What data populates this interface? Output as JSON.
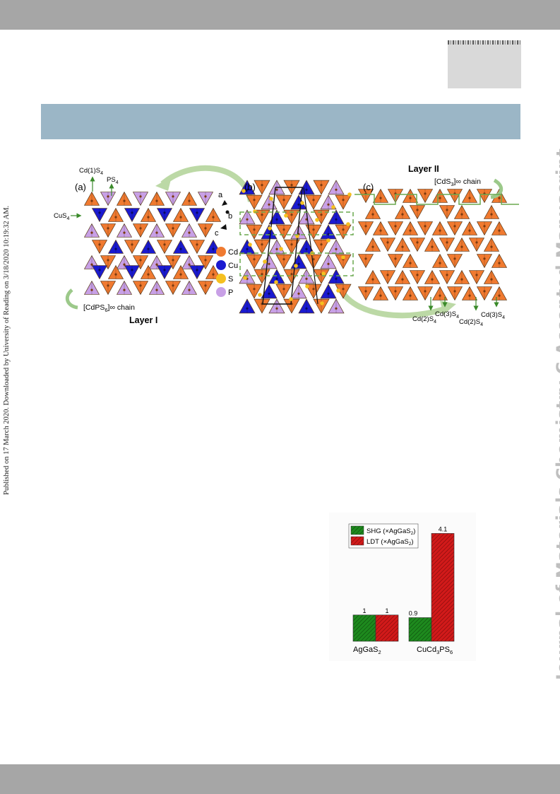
{
  "sidebar_left": "Published on 17 March 2020. Downloaded by University of Reading on 3/18/2020 10:19:32 AM.",
  "sidebar_right": "Journal of Materials Chemistry C Accepted Manuscript",
  "figure1": {
    "panel_a": "(a)",
    "panel_b": "(b)",
    "panel_c": "(c)",
    "cd1s4": "Cd(1)S",
    "ps4": "PS",
    "cus4": "CuS",
    "cdps6_chain": "[CdPS",
    "cdps6_chain_tail": "]∞ chain",
    "layer1": "Layer I",
    "layer2": "Layer II",
    "cds3_chain": "[CdS",
    "cds3_chain_tail": "]∞ chain",
    "axis_a": "a",
    "axis_b": "b",
    "axis_c": "c",
    "legend": [
      {
        "label": "Cd",
        "color": "#f07a30"
      },
      {
        "label": "Cu",
        "color": "#1a1ad0"
      },
      {
        "label": "S",
        "color": "#f5c020"
      },
      {
        "label": "P",
        "color": "#c8a0e6"
      }
    ],
    "cd2s4": "Cd(2)S",
    "cd3s4": "Cd(3)S",
    "sub4": "4",
    "sub3": "3",
    "sub6": "6"
  },
  "chart_data": {
    "type": "bar",
    "categories": [
      "AgGaS2",
      "CuCd3PS6"
    ],
    "category_labels": [
      {
        "base": "AgGaS",
        "sub": "2"
      },
      {
        "base": "CuCd",
        "sub": "3",
        "mid": "PS",
        "sub2": "6"
      }
    ],
    "series": [
      {
        "name": "SHG (×AgGaS2)",
        "legend_base": "SHG (×AgGaS",
        "legend_sub": "2",
        "legend_tail": ")",
        "values": [
          1,
          0.9
        ],
        "color": "#1e8a1e"
      },
      {
        "name": "LDT (×AgGaS2)",
        "legend_base": "LDT (×AgGaS",
        "legend_sub": "2",
        "legend_tail": ")",
        "values": [
          1,
          4.1
        ],
        "color": "#d21a1a"
      }
    ],
    "value_labels": [
      "1",
      "1",
      "0.9",
      "4.1"
    ],
    "ylim": [
      0,
      4.3
    ]
  }
}
